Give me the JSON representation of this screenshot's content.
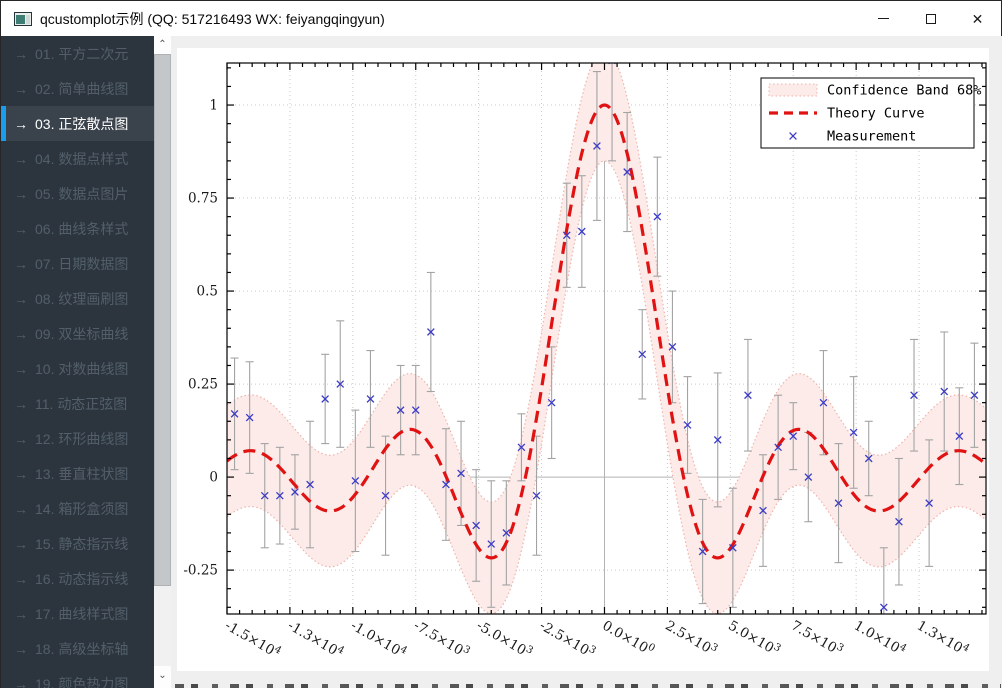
{
  "window": {
    "title": "qcustomplot示例 (QQ: 517216493 WX: feiyangqingyun)",
    "controls": {
      "minimize": "минимize-glyph",
      "maximize": "maximize-glyph",
      "close": "✕"
    }
  },
  "sidebar": {
    "items": [
      {
        "label": "01. 平方二次元",
        "selected": false
      },
      {
        "label": "02. 简单曲线图",
        "selected": false
      },
      {
        "label": "03. 正弦散点图",
        "selected": true
      },
      {
        "label": "04. 数据点样式",
        "selected": false
      },
      {
        "label": "05. 数据点图片",
        "selected": false
      },
      {
        "label": "06. 曲线条样式",
        "selected": false
      },
      {
        "label": "07. 日期数据图",
        "selected": false
      },
      {
        "label": "08. 纹理画刷图",
        "selected": false
      },
      {
        "label": "09. 双坐标曲线",
        "selected": false
      },
      {
        "label": "10. 对数曲线图",
        "selected": false
      },
      {
        "label": "11. 动态正弦图",
        "selected": false
      },
      {
        "label": "12. 环形曲线图",
        "selected": false
      },
      {
        "label": "13. 垂直柱状图",
        "selected": false
      },
      {
        "label": "14. 箱形盒须图",
        "selected": false
      },
      {
        "label": "15. 静态指示线",
        "selected": false
      },
      {
        "label": "16. 动态指示线",
        "selected": false
      },
      {
        "label": "17. 曲线样式图",
        "selected": false
      },
      {
        "label": "18. 高级坐标轴",
        "selected": false
      },
      {
        "label": "19. 颜色热力图",
        "selected": false
      }
    ],
    "arrow_glyph": "→",
    "accent_color": "#1a9ded"
  },
  "chart_data": {
    "type": "scatter",
    "title": "",
    "legend": {
      "position": "top-right",
      "entries": [
        {
          "label": "Confidence Band 68%",
          "kind": "band"
        },
        {
          "label": "Theory Curve",
          "kind": "dashed-line"
        },
        {
          "label": "Measurement",
          "kind": "x-marker"
        }
      ]
    },
    "x_axis": {
      "range": [
        -15000,
        15160
      ],
      "major_step": 2500,
      "minor_step": 500,
      "label_rotation_deg": 30,
      "tick_labels": [
        {
          "v": -15000,
          "m": "-1.5×10",
          "e": "4"
        },
        {
          "v": -12500,
          "m": "-1.3×10",
          "e": "4"
        },
        {
          "v": -10000,
          "m": "-1.0×10",
          "e": "4"
        },
        {
          "v": -7500,
          "m": "-7.5×10",
          "e": "3"
        },
        {
          "v": -5000,
          "m": "-5.0×10",
          "e": "3"
        },
        {
          "v": -2500,
          "m": "-2.5×10",
          "e": "3"
        },
        {
          "v": 0,
          "m": "0.0×10",
          "e": "0"
        },
        {
          "v": 2500,
          "m": "2.5×10",
          "e": "3"
        },
        {
          "v": 5000,
          "m": "5.0×10",
          "e": "3"
        },
        {
          "v": 7500,
          "m": "7.5×10",
          "e": "3"
        },
        {
          "v": 10000,
          "m": "1.0×10",
          "e": "4"
        },
        {
          "v": 12500,
          "m": "1.3×10",
          "e": "4"
        }
      ]
    },
    "y_axis": {
      "range": [
        -0.368,
        1.113
      ],
      "major_step": 0.25,
      "minor_step": 0.05,
      "tick_labels": [
        "-0.25",
        "0",
        "0.25",
        "0.5",
        "0.75",
        "1"
      ],
      "tick_values": [
        -0.25,
        0,
        0.25,
        0.5,
        0.75,
        1
      ]
    },
    "theory_curve": {
      "formula": "sin(x/1000)/(x/1000)",
      "color": "#e01212",
      "style": "dashed",
      "width": 3.2
    },
    "confidence_band": {
      "half_width": 0.15,
      "fill": "#fcebe9",
      "edge_color": "#efb3ab",
      "edge_style": "dotted"
    },
    "measurements": {
      "marker": "x",
      "color": "#3b3bc8",
      "error_bar_color": "#a3a3a3",
      "x": [
        -14700,
        -14100,
        -13500,
        -12900,
        -12300,
        -11700,
        -11100,
        -10500,
        -9900,
        -9300,
        -8700,
        -8100,
        -7500,
        -6900,
        -6300,
        -5700,
        -5100,
        -4500,
        -3900,
        -3300,
        -2700,
        -2100,
        -1500,
        -900,
        -300,
        300,
        900,
        1500,
        2100,
        2700,
        3300,
        3900,
        4500,
        5100,
        5700,
        6300,
        6900,
        7500,
        8100,
        8700,
        9300,
        9900,
        10500,
        11100,
        11700,
        12300,
        12900,
        13500,
        14100,
        14700
      ],
      "y": [
        0.17,
        0.16,
        -0.05,
        -0.05,
        -0.04,
        -0.02,
        0.21,
        0.25,
        -0.01,
        0.21,
        -0.05,
        0.18,
        0.18,
        0.39,
        -0.02,
        0.01,
        -0.13,
        -0.18,
        -0.15,
        0.08,
        -0.05,
        0.2,
        0.65,
        0.66,
        0.89,
        1.12,
        0.82,
        0.33,
        0.7,
        0.35,
        0.14,
        -0.2,
        0.1,
        -0.19,
        0.22,
        -0.09,
        0.08,
        0.11,
        0.0,
        0.2,
        -0.07,
        0.12,
        0.05,
        -0.35,
        -0.12,
        0.22,
        -0.07,
        0.23,
        0.11,
        0.22
      ],
      "err": [
        0.15,
        0.15,
        0.14,
        0.13,
        0.1,
        0.17,
        0.12,
        0.17,
        0.19,
        0.13,
        0.16,
        0.12,
        0.12,
        0.16,
        0.15,
        0.14,
        0.15,
        0.17,
        0.14,
        0.09,
        0.16,
        0.15,
        0.14,
        0.15,
        0.2,
        0.27,
        0.16,
        0.12,
        0.16,
        0.15,
        0.13,
        0.14,
        0.18,
        0.16,
        0.15,
        0.15,
        0.14,
        0.09,
        0.12,
        0.14,
        0.16,
        0.15,
        0.1,
        0.16,
        0.17,
        0.15,
        0.17,
        0.16,
        0.13,
        0.14
      ]
    },
    "grid": {
      "dotted_color": "#c9c9c9",
      "zero_line_color": "#b2b2b2"
    }
  }
}
